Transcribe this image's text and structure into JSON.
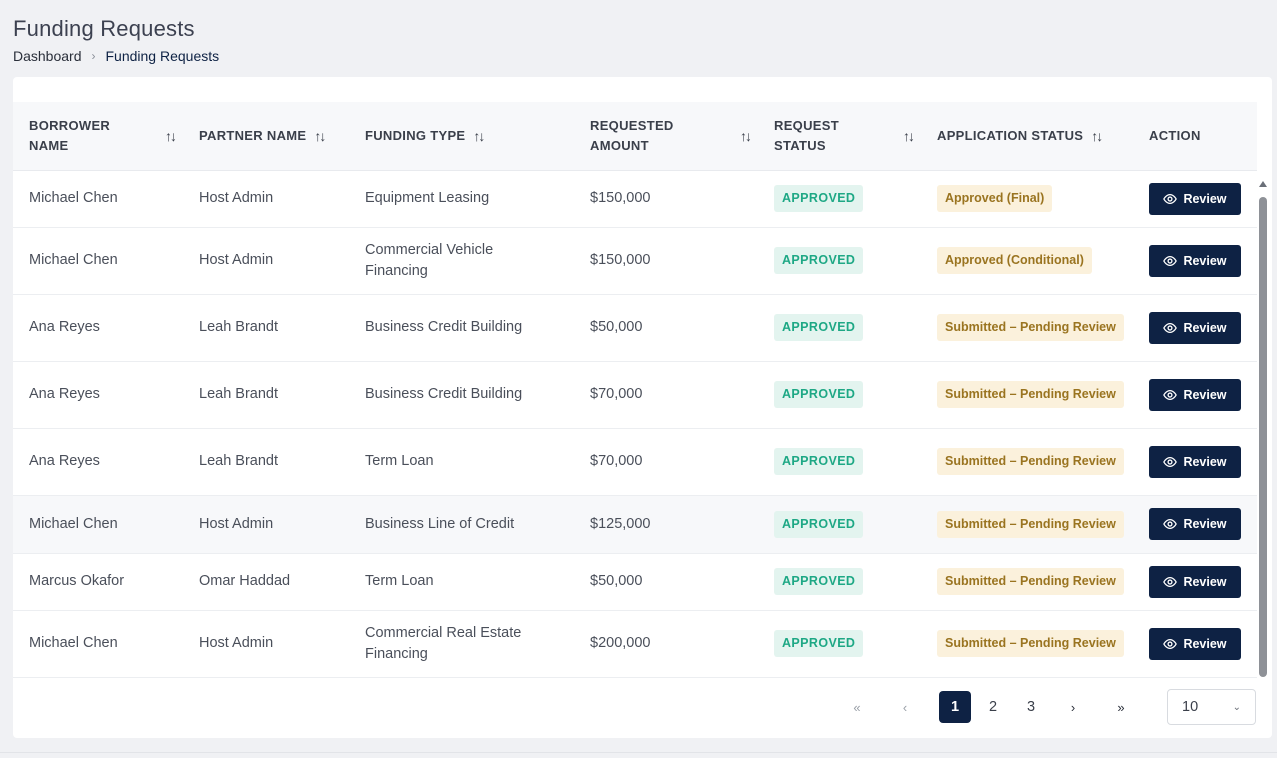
{
  "page": {
    "title": "Funding Requests",
    "breadcrumb": {
      "home": "Dashboard",
      "separator": "›",
      "current": "Funding Requests"
    }
  },
  "table": {
    "columns": [
      {
        "label": "BORROWER NAME",
        "sortable": true
      },
      {
        "label": "PARTNER NAME",
        "sortable": true
      },
      {
        "label": "FUNDING TYPE",
        "sortable": true
      },
      {
        "label": "REQUESTED AMOUNT",
        "sortable": true
      },
      {
        "label": "REQUEST STATUS",
        "sortable": true
      },
      {
        "label": "APPLICATION STATUS",
        "sortable": true
      },
      {
        "label": "ACTION",
        "sortable": false
      }
    ],
    "sort_icon": "sort-arrows-icon",
    "action_label": "Review",
    "rows": [
      {
        "borrower": "Michael Chen",
        "partner": "Host Admin",
        "funding_type": "Equipment Leasing",
        "amount": "$150,000",
        "request_status": "APPROVED",
        "application_status": "Approved (Final)"
      },
      {
        "borrower": "Michael Chen",
        "partner": "Host Admin",
        "funding_type": "Commercial Vehicle Financing",
        "amount": "$150,000",
        "request_status": "APPROVED",
        "application_status": "Approved (Conditional)"
      },
      {
        "borrower": "Ana Reyes",
        "partner": "Leah Brandt",
        "funding_type": "Business Credit Building",
        "amount": "$50,000",
        "request_status": "APPROVED",
        "application_status": "Submitted – Pending Review"
      },
      {
        "borrower": "Ana Reyes",
        "partner": "Leah Brandt",
        "funding_type": "Business Credit Building",
        "amount": "$70,000",
        "request_status": "APPROVED",
        "application_status": "Submitted – Pending Review"
      },
      {
        "borrower": "Ana Reyes",
        "partner": "Leah Brandt",
        "funding_type": "Term Loan",
        "amount": "$70,000",
        "request_status": "APPROVED",
        "application_status": "Submitted – Pending Review"
      },
      {
        "borrower": "Michael Chen",
        "partner": "Host Admin",
        "funding_type": "Business Line of Credit",
        "amount": "$125,000",
        "request_status": "APPROVED",
        "application_status": "Submitted – Pending Review"
      },
      {
        "borrower": "Marcus Okafor",
        "partner": "Omar Haddad",
        "funding_type": "Term Loan",
        "amount": "$50,000",
        "request_status": "APPROVED",
        "application_status": "Submitted – Pending Review"
      },
      {
        "borrower": "Michael Chen",
        "partner": "Host Admin",
        "funding_type": "Commercial Real Estate Financing",
        "amount": "$200,000",
        "request_status": "APPROVED",
        "application_status": "Submitted – Pending Review"
      }
    ]
  },
  "pagination": {
    "first": "«",
    "prev": "‹",
    "pages": [
      "1",
      "2",
      "3"
    ],
    "current": "1",
    "next": "›",
    "last": "»",
    "page_size": "10"
  },
  "colors": {
    "primary": "#0e2244",
    "approved_bg": "#e3f4ef",
    "approved_text": "#1ea885",
    "app_status_bg": "#fbf1dc",
    "app_status_text": "#9a7420"
  }
}
